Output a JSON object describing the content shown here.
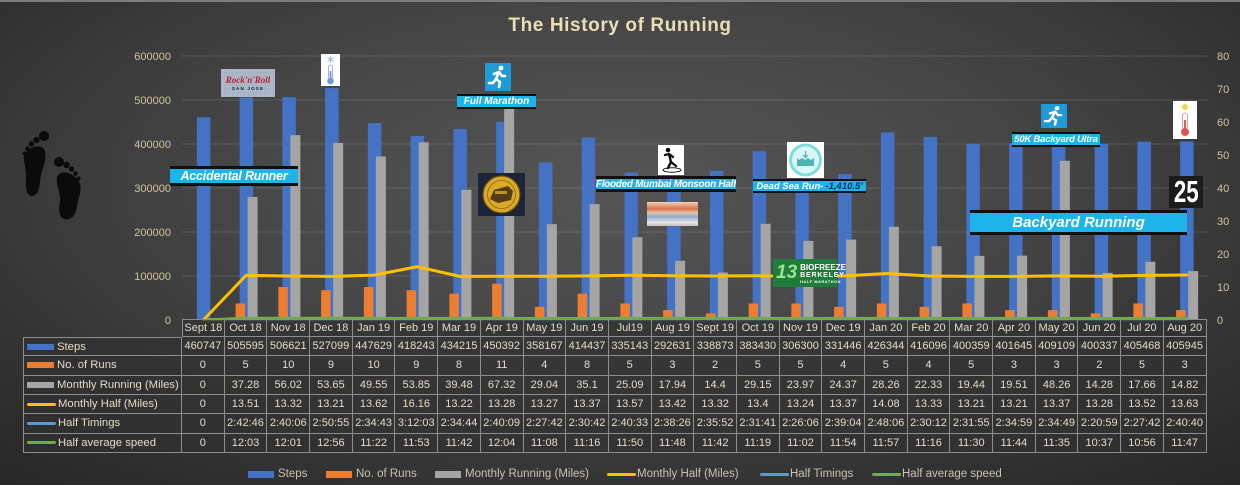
{
  "chart_data": {
    "type": "bar",
    "title": "The History of Running",
    "xlabel": "",
    "ylabel": "",
    "grid": true,
    "legend_position": "bottom",
    "categories": [
      "Sept 18",
      "Oct 18",
      "Nov 18",
      "Dec 18",
      "Jan 19",
      "Feb 19",
      "Mar 19",
      "Apr 19",
      "May 19",
      "Jun 19",
      "Jul19",
      "Aug 19",
      "Sept 19",
      "Oct 19",
      "Nov 19",
      "Dec 19",
      "Jan 20",
      "Feb 20",
      "Mar 20",
      "Apr 20",
      "May 20",
      "Jun 20",
      "Jul 20",
      "Aug 20"
    ],
    "y_left": {
      "min": 0,
      "max": 600000,
      "ticks": [
        0,
        100000,
        200000,
        300000,
        400000,
        500000,
        600000
      ]
    },
    "y_right": {
      "min": 0,
      "max": 80,
      "ticks": [
        0,
        10,
        20,
        30,
        40,
        50,
        60,
        70,
        80
      ]
    },
    "series": [
      {
        "name": "Steps",
        "type": "bar",
        "axis": "left",
        "color": "#4472c4",
        "values": [
          460747,
          505595,
          506621,
          527099,
          447629,
          418243,
          434215,
          450392,
          358167,
          414437,
          335143,
          292631,
          338873,
          383430,
          306300,
          331446,
          426344,
          416096,
          400359,
          401645,
          409109,
          400337,
          405468,
          405945
        ]
      },
      {
        "name": "No. of Runs",
        "type": "bar",
        "axis": "right",
        "color": "#ed7d31",
        "values": [
          0,
          5,
          10,
          9,
          10,
          9,
          8,
          11,
          4,
          8,
          5,
          3,
          2,
          5,
          5,
          4,
          5,
          4,
          5,
          3,
          3,
          2,
          5,
          3
        ]
      },
      {
        "name": "Monthly Running (Miles)",
        "type": "bar",
        "axis": "right",
        "color": "#a5a5a5",
        "values": [
          0,
          37.28,
          56.02,
          53.65,
          49.55,
          53.85,
          39.48,
          67.32,
          29.04,
          35.1,
          25.09,
          17.94,
          14.4,
          29.15,
          23.97,
          24.37,
          28.26,
          22.33,
          19.44,
          19.51,
          48.26,
          14.28,
          17.66,
          14.82
        ]
      },
      {
        "name": "Monthly Half (Miles)",
        "type": "line",
        "axis": "right",
        "color": "#ffc000",
        "values": [
          0,
          13.51,
          13.32,
          13.21,
          13.62,
          16.16,
          13.22,
          13.28,
          13.27,
          13.37,
          13.57,
          13.42,
          13.32,
          13.4,
          13.24,
          13.37,
          14.08,
          13.33,
          13.21,
          13.21,
          13.37,
          13.28,
          13.52,
          13.63
        ]
      },
      {
        "name": "Half Timings",
        "type": "line",
        "axis": "right",
        "color": "#5b9bd5",
        "values": [
          "0",
          "2:42:46",
          "2:40:06",
          "2:50:55",
          "2:34:43",
          "3:12:03",
          "2:34:44",
          "2:40:09",
          "2:27:42",
          "2:30:42",
          "2:40:33",
          "2:38:26",
          "2:35:52",
          "2:31:41",
          "2:26:06",
          "2:39:04",
          "2:48:06",
          "2:30:12",
          "2:31:55",
          "2:34:59",
          "2:34:49",
          "2:20:59",
          "2:27:42",
          "2:40:40"
        ]
      },
      {
        "name": "Half average speed",
        "type": "line",
        "axis": "right",
        "color": "#70ad47",
        "values": [
          "0",
          "12:03",
          "12:01",
          "12:56",
          "11:22",
          "11:53",
          "11:42",
          "12:04",
          "11:08",
          "11:16",
          "11:50",
          "11:48",
          "11:42",
          "11:19",
          "11:02",
          "11:54",
          "11:57",
          "11:16",
          "11:30",
          "11:44",
          "11:35",
          "10:37",
          "10:56",
          "11:47"
        ]
      }
    ]
  },
  "annotations": {
    "accidental_runner": "Accidental Runner",
    "full_marathon": "Full Marathon",
    "flooded_mumbai": "Flooded Mumbai Monsoon Half",
    "dead_sea": "Dead Sea Run-",
    "dead_sea_depth": "-1,410.5'",
    "ultra_50k": "50K Backyard Ultra",
    "backyard_running": "Backyard Running",
    "count_badge": "25",
    "rock_n_roll": {
      "name": "Rock'n'Roll",
      "city": "SAN JOSE"
    },
    "biofreeze": {
      "number": "13",
      "line1": "BIOFREEZE",
      "line2": "BERKELEY",
      "line3": "HALF MARATHON"
    },
    "brand_colors": {
      "banner": "#1db4ea",
      "title": "#eadfb4"
    }
  },
  "icons": {
    "feet": "footprints-icon",
    "runner": "running-person-icon",
    "cold": "cold-thermometer-icon",
    "hot": "hot-thermometer-icon",
    "slip": "slipping-person-icon",
    "sea": "dead-sea-icon"
  }
}
